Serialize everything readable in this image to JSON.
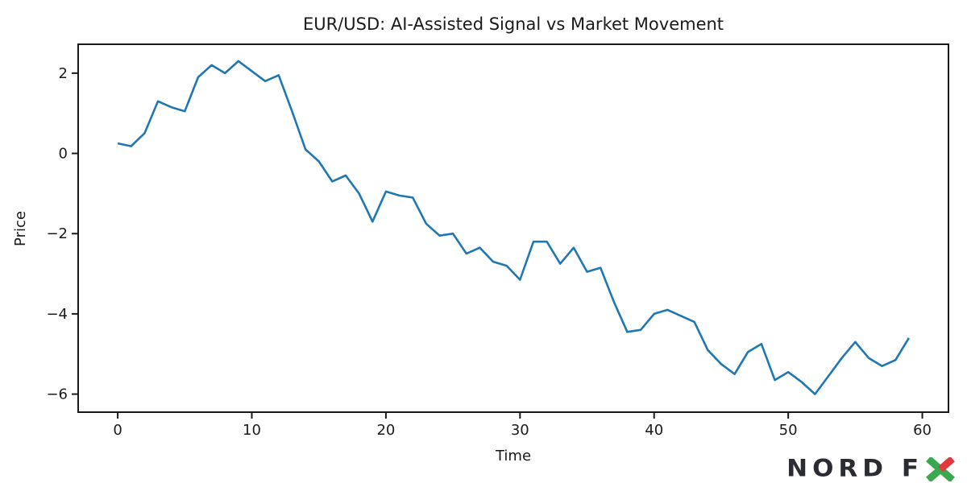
{
  "chart_data": {
    "type": "line",
    "title": "EUR/USD: AI-Assisted Signal vs Market Movement",
    "xlabel": "Time",
    "ylabel": "Price",
    "x": [
      0,
      1,
      2,
      3,
      4,
      5,
      6,
      7,
      8,
      9,
      10,
      11,
      12,
      13,
      14,
      15,
      16,
      17,
      18,
      19,
      20,
      21,
      22,
      23,
      24,
      25,
      26,
      27,
      28,
      29,
      30,
      31,
      32,
      33,
      34,
      35,
      36,
      37,
      38,
      39,
      40,
      41,
      42,
      43,
      44,
      45,
      46,
      47,
      48,
      49,
      50,
      51,
      52,
      53,
      54,
      55,
      56,
      57,
      58,
      59
    ],
    "values": [
      0.25,
      0.18,
      0.5,
      1.3,
      1.15,
      1.05,
      1.9,
      2.2,
      2.0,
      2.3,
      2.05,
      1.8,
      1.95,
      1.05,
      0.1,
      -0.2,
      -0.7,
      -0.55,
      -1.0,
      -1.7,
      -0.95,
      -1.05,
      -1.1,
      -1.75,
      -2.05,
      -2.0,
      -2.5,
      -2.35,
      -2.7,
      -2.8,
      -3.15,
      -2.2,
      -2.2,
      -2.75,
      -2.35,
      -2.95,
      -2.85,
      -3.7,
      -4.45,
      -4.4,
      -4.0,
      -3.9,
      -4.05,
      -4.2,
      -4.9,
      -5.25,
      -5.5,
      -4.95,
      -4.75,
      -5.65,
      -5.45,
      -5.7,
      -6.0,
      -5.55,
      -5.1,
      -4.7,
      -5.1,
      -5.3,
      -5.15,
      -4.6
    ],
    "xticks": [
      0,
      10,
      20,
      30,
      40,
      50,
      60
    ],
    "yticks": [
      2,
      0,
      -2,
      -4,
      -6
    ],
    "xlim": [
      -2.95,
      61.95
    ],
    "ylim": [
      -6.45,
      2.72
    ],
    "line_color": "#1f77b4",
    "axis_color": "#1a1a1a",
    "grid": false,
    "legend": null
  },
  "branding": {
    "logo_text": "NORD F",
    "logo_x_letter": "X",
    "dark_color": "#2b2b33",
    "green_color": "#3aa94d",
    "red_color": "#e03a40"
  }
}
